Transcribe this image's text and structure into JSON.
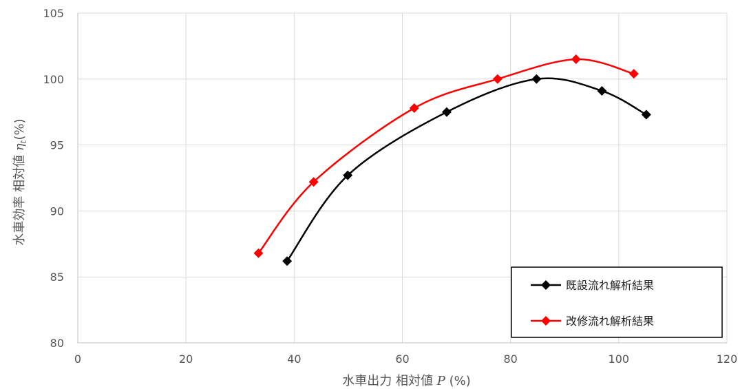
{
  "chart_data": {
    "type": "line",
    "xlabel": {
      "prefix": "水車出力 相対値 ",
      "symbol": "P",
      "suffix": " (%)"
    },
    "ylabel": {
      "prefix": "水車効率 相対値 ",
      "symbol": "η",
      "subscript": "t",
      "suffix": "(%)"
    },
    "xlim": [
      0,
      120
    ],
    "ylim": [
      80,
      105
    ],
    "xticks": [
      0,
      20,
      40,
      60,
      80,
      100,
      120
    ],
    "yticks": [
      80,
      85,
      90,
      95,
      100,
      105
    ],
    "grid": true,
    "legend_position": "bottom-right",
    "series": [
      {
        "name": "既設流れ解析結果",
        "color": "#000000",
        "marker": "diamond",
        "x": [
          38.7,
          49.9,
          68.2,
          84.8,
          96.9,
          105.1
        ],
        "y": [
          86.2,
          92.7,
          97.5,
          100.0,
          99.1,
          97.3
        ]
      },
      {
        "name": "改修流れ解析結果",
        "color": "#ff0000",
        "marker": "diamond",
        "x": [
          33.4,
          43.6,
          62.2,
          77.6,
          92.1,
          102.8
        ],
        "y": [
          86.8,
          92.2,
          97.8,
          100.0,
          101.5,
          100.4
        ]
      }
    ]
  }
}
